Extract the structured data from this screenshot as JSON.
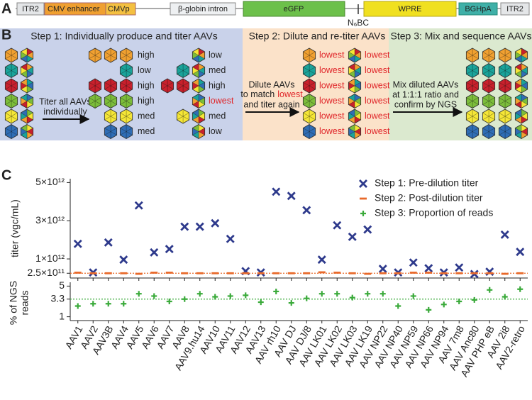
{
  "panel_a": {
    "label": "A",
    "elements": [
      "ITR2",
      "CMV enhancer",
      "CMVp",
      "β-globin intron",
      "eGFP",
      "N₆BC",
      "WPRE",
      "BGHpA",
      "ITR2"
    ]
  },
  "panel_b": {
    "label": "B",
    "step1": {
      "title": "Step 1: Individually produce and titer AAVs",
      "arrow_text": [
        "Titer all AAVs",
        "individually"
      ],
      "titers_a": [
        "high",
        "low",
        "high",
        "high",
        "med",
        "med"
      ],
      "titers_b": [
        "low",
        "med",
        "high",
        "lowest",
        "med",
        "low"
      ]
    },
    "step2": {
      "title": "Step 2: Dilute and re-titer AAVs",
      "arrow_text": [
        "Dilute AAVs",
        "to match",
        "lowest",
        "and titer again"
      ],
      "titers_a": [
        "lowest",
        "lowest",
        "lowest",
        "lowest",
        "lowest",
        "lowest"
      ],
      "titers_b": [
        "lowest",
        "lowest",
        "lowest",
        "lowest",
        "lowest",
        "lowest"
      ]
    },
    "step3": {
      "title": "Step 3: Mix and sequence AAVs",
      "arrow_text": [
        "Mix diluted AAVs",
        "at 1:1:1 ratio and",
        "confirm by NGS"
      ]
    }
  },
  "panel_c_label": "C",
  "chart_data": [
    {
      "type": "scatter",
      "ylabel": "titer (vgc/mL)",
      "categories": [
        "AAV1",
        "AAV2",
        "AAV3B",
        "AAV4",
        "AAV5",
        "AAV6",
        "AAV7",
        "AAV8",
        "AAV9.hu14",
        "AAV10",
        "AAV11",
        "AAV12",
        "AAV13",
        "AAV rh10",
        "AAV DJ",
        "AAV DJ/8",
        "AAV LK01",
        "AAV LK02",
        "AAV LK03",
        "AAV LK19",
        "AAV NP22",
        "AAV NP40",
        "AAV NP59",
        "AAV NP66",
        "AAV NP94",
        "AAV 7m8",
        "AAV Anc80",
        "AAV PHP eB",
        "AAV 2i8",
        "AAV2-retro"
      ],
      "series": [
        {
          "name": "Step 1: Pre-dilution titer",
          "color": "#2e3a8c",
          "marker": "x",
          "values": [
            1790000000000.0,
            290000000000.0,
            1860000000000.0,
            960000000000.0,
            3800000000000.0,
            1340000000000.0,
            1520000000000.0,
            2690000000000.0,
            2690000000000.0,
            2870000000000.0,
            2050000000000.0,
            360000000000.0,
            290000000000.0,
            4520000000000.0,
            4300000000000.0,
            3550000000000.0,
            960000000000.0,
            2760000000000.0,
            2160000000000.0,
            2540000000000.0,
            480000000000.0,
            290000000000.0,
            810000000000.0,
            510000000000.0,
            290000000000.0,
            550000000000.0,
            210000000000.0,
            330000000000.0,
            2270000000000.0,
            1370000000000.0
          ]
        },
        {
          "name": "Step 2: Post-dilution titer",
          "color": "#e8692a",
          "marker": "dash",
          "values": [
            280000000000.0,
            250000000000.0,
            250000000000.0,
            250000000000.0,
            220000000000.0,
            280000000000.0,
            280000000000.0,
            250000000000.0,
            250000000000.0,
            250000000000.0,
            250000000000.0,
            250000000000.0,
            250000000000.0,
            250000000000.0,
            250000000000.0,
            250000000000.0,
            300000000000.0,
            280000000000.0,
            250000000000.0,
            220000000000.0,
            250000000000.0,
            250000000000.0,
            280000000000.0,
            280000000000.0,
            250000000000.0,
            250000000000.0,
            250000000000.0,
            250000000000.0,
            220000000000.0,
            250000000000.0
          ]
        }
      ],
      "ylim": [
        0,
        5200000000000.0
      ],
      "yticks": [
        {
          "value": 250000000000.0,
          "label": "2.5×10¹¹"
        },
        {
          "value": 1000000000000.0,
          "label": "1×10¹²"
        },
        {
          "value": 3000000000000.0,
          "label": "3×10¹²"
        },
        {
          "value": 5000000000000.0,
          "label": "5×10¹²"
        }
      ],
      "reference_line": {
        "value": 250000000000.0,
        "color": "#e8692a"
      },
      "legend": "upper right"
    },
    {
      "type": "scatter",
      "ylabel": [
        "% of NGS",
        "reads"
      ],
      "categories": [
        "AAV1",
        "AAV2",
        "AAV3B",
        "AAV4",
        "AAV5",
        "AAV6",
        "AAV7",
        "AAV8",
        "AAV9.hu14",
        "AAV10",
        "AAV11",
        "AAV12",
        "AAV13",
        "AAV rh10",
        "AAV DJ",
        "AAV DJ/8",
        "AAV LK01",
        "AAV LK02",
        "AAV LK03",
        "AAV LK19",
        "AAV NP22",
        "AAV NP40",
        "AAV NP59",
        "AAV NP66",
        "AAV NP94",
        "AAV 7m8",
        "AAV Anc80",
        "AAV PHP eB",
        "AAV 2i8",
        "AAV2-retro"
      ],
      "series": [
        {
          "name": "Step 3: Proportion of reads",
          "color": "#3aaa3a",
          "marker": "plus",
          "values": [
            2.4,
            2.7,
            2.7,
            2.7,
            4.0,
            3.7,
            3.0,
            3.3,
            4.0,
            3.6,
            3.7,
            3.8,
            2.9,
            4.3,
            2.8,
            3.4,
            4.0,
            4.0,
            3.5,
            4.0,
            4.0,
            2.4,
            3.7,
            1.9,
            2.6,
            3.0,
            3.2,
            4.5,
            3.6,
            4.6
          ]
        }
      ],
      "ylim": [
        0.5,
        5.5
      ],
      "yticks": [
        1,
        3.3,
        5
      ],
      "reference_line": {
        "value": 3.3,
        "color": "#3aaa3a"
      }
    }
  ]
}
